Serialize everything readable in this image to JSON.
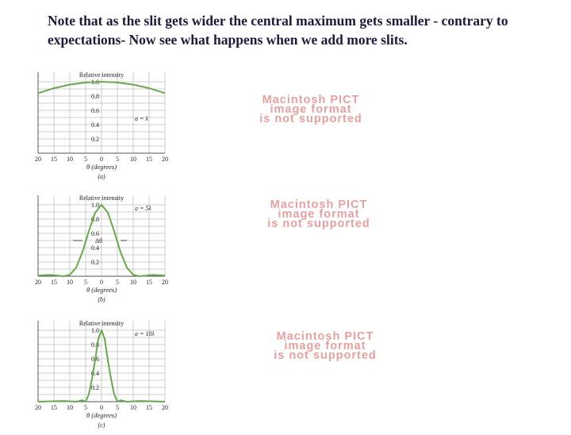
{
  "slide": {
    "title": "Note that as the slit gets wider the central maximum gets smaller - contrary to expectations- Now see what happens when we add more slits."
  },
  "placeholders": [
    {
      "lines": [
        "Macintosh PICT",
        "image format",
        "is not supported"
      ]
    },
    {
      "lines": [
        "Macintosh PICT",
        "image format",
        "is not supported"
      ]
    },
    {
      "lines": [
        "Macintosh PICT",
        "image format",
        "is not supported"
      ]
    }
  ],
  "colors": {
    "curve": "#6aa84f",
    "grid": "#bfbfbf",
    "text": "#1b1b3a",
    "placeholder": "#e5a0a0"
  },
  "chart_data": [
    {
      "type": "line",
      "ylabel": "Relative intensity",
      "xlabel": "θ (degrees)",
      "panel_label": "(a)",
      "annotation": "a = λ",
      "xlim": [
        -20,
        20
      ],
      "ylim": [
        0,
        1.0
      ],
      "x_ticks": [
        "20",
        "15",
        "10",
        "5",
        "0",
        "5",
        "10",
        "15",
        "20"
      ],
      "y_ticks": [
        "1.0",
        "0.8",
        "0.6",
        "0.4",
        "0.2"
      ],
      "series": [
        {
          "x": [
            -20,
            -15,
            -10,
            -5,
            0,
            5,
            10,
            15,
            20
          ],
          "y": [
            0.84,
            0.91,
            0.96,
            0.99,
            1.0,
            0.99,
            0.96,
            0.91,
            0.84
          ]
        }
      ]
    },
    {
      "type": "line",
      "ylabel": "Relative intensity",
      "xlabel": "θ (degrees)",
      "panel_label": "(b)",
      "annotation": "a = 5λ",
      "width_label": "Δθ",
      "xlim": [
        -20,
        20
      ],
      "ylim": [
        0,
        1.0
      ],
      "x_ticks": [
        "20",
        "15",
        "10",
        "5",
        "0",
        "5",
        "10",
        "15",
        "20"
      ],
      "y_ticks": [
        "1.0",
        "0.8",
        "0.6",
        "0.4",
        "0.2"
      ],
      "series": [
        {
          "x": [
            -20,
            -16,
            -12,
            -10,
            -8,
            -6,
            -4,
            -2,
            0,
            2,
            4,
            6,
            8,
            10,
            12,
            16,
            20
          ],
          "y": [
            0.01,
            0.02,
            0.0,
            0.02,
            0.12,
            0.34,
            0.63,
            0.89,
            1.0,
            0.89,
            0.63,
            0.34,
            0.12,
            0.02,
            0.0,
            0.02,
            0.01
          ]
        }
      ]
    },
    {
      "type": "line",
      "ylabel": "Relative intensity",
      "xlabel": "θ (degrees)",
      "panel_label": "(c)",
      "annotation": "a = 10λ",
      "xlim": [
        -20,
        20
      ],
      "ylim": [
        0,
        1.0
      ],
      "x_ticks": [
        "20",
        "15",
        "10",
        "5",
        "0",
        "5",
        "10",
        "15",
        "20"
      ],
      "y_ticks": [
        "1.0",
        "0.8",
        "0.6",
        "0.4",
        "0.2"
      ],
      "series": [
        {
          "x": [
            -20,
            -12,
            -8,
            -6,
            -5,
            -4,
            -3,
            -2,
            -1,
            0,
            1,
            2,
            3,
            4,
            5,
            6,
            8,
            12,
            20
          ],
          "y": [
            0.0,
            0.01,
            0.0,
            0.02,
            0.0,
            0.1,
            0.32,
            0.58,
            0.88,
            1.0,
            0.88,
            0.58,
            0.32,
            0.1,
            0.0,
            0.02,
            0.0,
            0.01,
            0.0
          ]
        }
      ]
    }
  ]
}
